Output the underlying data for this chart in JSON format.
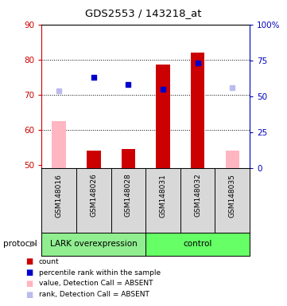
{
  "title": "GDS2553 / 143218_at",
  "samples": [
    "GSM148016",
    "GSM148026",
    "GSM148028",
    "GSM148031",
    "GSM148032",
    "GSM148035"
  ],
  "group_labels": [
    "LARK overexpression",
    "control"
  ],
  "group_split": 3,
  "ylim_left": [
    49,
    90
  ],
  "ylim_right": [
    0,
    100
  ],
  "yticks_left": [
    50,
    60,
    70,
    80,
    90
  ],
  "yticks_right": [
    0,
    25,
    50,
    75,
    100
  ],
  "ytick_labels_right": [
    "0",
    "25",
    "50",
    "75",
    "100%"
  ],
  "bar_values": [
    62.5,
    54.0,
    54.5,
    78.5,
    82.0,
    54.0
  ],
  "bar_colors": [
    "#FFB6C1",
    "#CC0000",
    "#CC0000",
    "#CC0000",
    "#CC0000",
    "#FFB6C1"
  ],
  "rank_values": [
    71.0,
    75.0,
    73.0,
    71.5,
    79.0,
    72.0
  ],
  "rank_colors": [
    "#BBBBEE",
    "#0000CC",
    "#0000CC",
    "#0000CC",
    "#0000CC",
    "#BBBBEE"
  ],
  "legend_items": [
    {
      "label": "count",
      "color": "#CC0000"
    },
    {
      "label": "percentile rank within the sample",
      "color": "#0000CC"
    },
    {
      "label": "value, Detection Call = ABSENT",
      "color": "#FFB6C1"
    },
    {
      "label": "rank, Detection Call = ABSENT",
      "color": "#BBBBEE"
    }
  ],
  "axis_left_color": "#CC0000",
  "axis_right_color": "#0000BB",
  "bar_width": 0.4,
  "bar_bottom": 49,
  "grid_lines": [
    60,
    70,
    80
  ],
  "group_color_lark": "#90EE90",
  "group_color_ctrl": "#66FF66",
  "sample_bg": "#D8D8D8",
  "protocol_arrow_color": "#888888"
}
